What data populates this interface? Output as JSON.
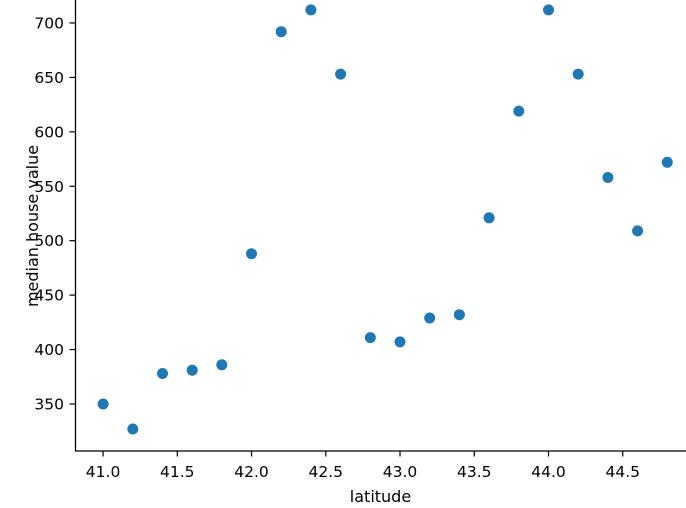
{
  "chart_data": {
    "type": "scatter",
    "title": "",
    "xlabel": "latitude",
    "ylabel": "median house value",
    "x": [
      41.0,
      41.2,
      41.4,
      41.6,
      41.8,
      42.0,
      42.2,
      42.4,
      42.6,
      42.8,
      43.0,
      43.2,
      43.4,
      43.6,
      43.8,
      44.0,
      44.2,
      44.4,
      44.6,
      44.8
    ],
    "y": [
      350,
      327,
      378,
      381,
      386,
      488,
      692,
      712,
      653,
      411,
      407,
      429,
      432,
      521,
      619,
      712,
      653,
      558,
      509,
      572
    ],
    "x_tick_values": [
      41.0,
      41.5,
      42.0,
      42.5,
      43.0,
      43.5,
      44.0,
      44.5
    ],
    "x_tick_labels": [
      "41.0",
      "41.5",
      "42.0",
      "42.5",
      "43.0",
      "43.5",
      "44.0",
      "44.5"
    ],
    "y_tick_values": [
      350,
      400,
      450,
      500,
      550,
      600,
      650,
      700
    ],
    "y_tick_labels": [
      "350",
      "400",
      "450",
      "500",
      "550",
      "600",
      "650",
      "700"
    ],
    "xlim": [
      40.811,
      44.926
    ],
    "ylim": [
      306.8,
      721.1
    ],
    "grid": false,
    "legend": null,
    "marker_color": "#1f77b4",
    "axis_color": "#000000",
    "text_color": "#000000"
  }
}
